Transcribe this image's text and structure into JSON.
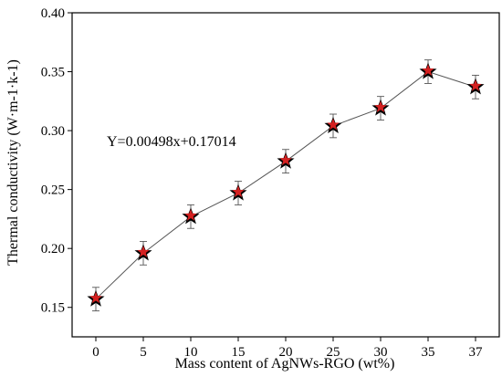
{
  "chart_data": {
    "type": "line",
    "xlabel": "Mass content of AgNWs-RGO (wt%)",
    "ylabel": "Thermal conductivity (W·m-1·k-1)",
    "x": [
      "0",
      "5",
      "10",
      "15",
      "20",
      "25",
      "30",
      "35",
      "37"
    ],
    "y": [
      0.157,
      0.196,
      0.227,
      0.247,
      0.274,
      0.304,
      0.319,
      0.35,
      0.337
    ],
    "error": [
      0.01,
      0.01,
      0.01,
      0.01,
      0.01,
      0.01,
      0.01,
      0.01,
      0.01
    ],
    "ylim": [
      0.125,
      0.4
    ],
    "yticks": [
      "0.15",
      "0.20",
      "0.25",
      "0.30",
      "0.35",
      "0.40"
    ],
    "annotation": "Y=0.00498x+0.17014",
    "marker": "star",
    "marker_fill": "#d42020",
    "marker_outline": "#000000",
    "line_color": "#555555",
    "grid": false
  }
}
